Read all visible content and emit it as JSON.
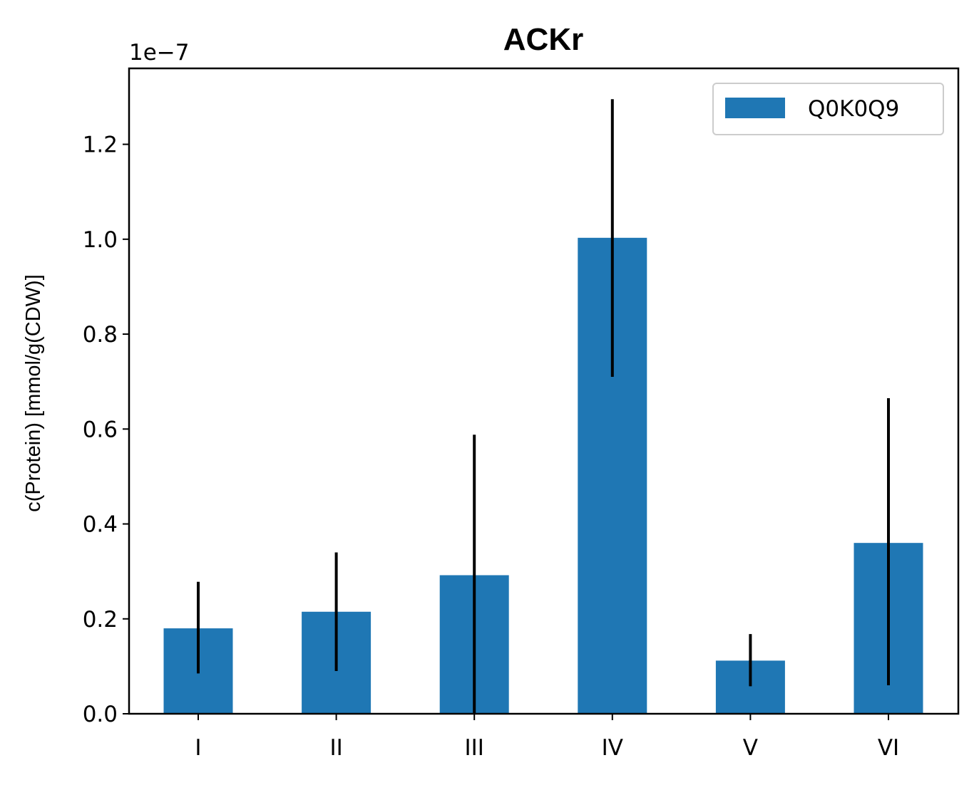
{
  "chart_data": {
    "type": "bar",
    "title": "ACKr",
    "xlabel": "",
    "ylabel": "c(Protein) [mmol/g(CDW)]",
    "offset_text": "1e−7",
    "categories": [
      "I",
      "II",
      "III",
      "IV",
      "V",
      "VI"
    ],
    "series": [
      {
        "name": "Q0K0Q9",
        "color": "#1f77b4",
        "values": [
          1.8e-08,
          2.15e-08,
          2.92e-08,
          1.003e-07,
          1.12e-08,
          3.6e-08
        ],
        "error_low": [
          8.5e-09,
          9e-09,
          0.0,
          7.1e-08,
          5.8e-09,
          6e-09
        ],
        "error_high": [
          2.78e-08,
          3.4e-08,
          5.88e-08,
          1.295e-07,
          1.68e-08,
          6.65e-08
        ]
      }
    ],
    "ylim": [
      0,
      1.36e-07
    ],
    "yticks": [
      0.0,
      0.2,
      0.4,
      0.6,
      0.8,
      1.0,
      1.2
    ],
    "ytick_labels": [
      "0.0",
      "0.2",
      "0.4",
      "0.6",
      "0.8",
      "1.0",
      "1.2"
    ],
    "ytick_scale": 1e-07,
    "grid": false,
    "legend_position": "top-right",
    "error_color": "#000000"
  }
}
